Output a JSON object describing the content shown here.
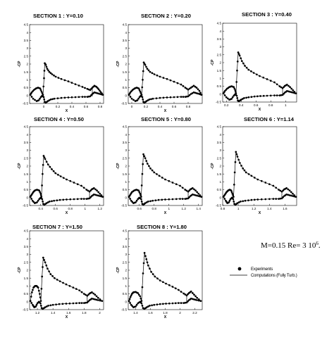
{
  "figure": {
    "conditions_main": "M=0.15 Re= 3 10",
    "conditions_sup": "6",
    "conditions_end": ".",
    "legend": {
      "experiments": "Experiments",
      "computations": "Computations (Fully Turb.)"
    }
  },
  "chart_data": [
    {
      "type": "line",
      "title": "SECTION 1 : Y=0.10",
      "xlabel": "X",
      "ylabel": "-CP",
      "xlim": [
        -0.2,
        0.85
      ],
      "ylim": [
        -0.5,
        4.5
      ],
      "xticks": [
        "0",
        "0.2",
        "0.4",
        "0.6",
        "0.8"
      ],
      "xtick_values": [
        0,
        0.2,
        0.4,
        0.6,
        0.8
      ],
      "yticks": [
        "-0.5",
        "0",
        "0.5",
        "1",
        "1.5",
        "2",
        "2.5",
        "3",
        "3.5",
        "4",
        "4.5"
      ],
      "upper_x": [
        -0.19,
        -0.17,
        -0.14,
        -0.11,
        -0.08,
        -0.05,
        -0.03,
        -0.01,
        0.005,
        0.015,
        0.03,
        0.05,
        0.08,
        0.12,
        0.17,
        0.25,
        0.35,
        0.45,
        0.55,
        0.62,
        0.66,
        0.69,
        0.72,
        0.75,
        0.78,
        0.81,
        0.84
      ],
      "upper_cp": [
        0.05,
        0.2,
        0.35,
        0.45,
        0.5,
        0.45,
        0.25,
        0.05,
        1.1,
        2.05,
        1.95,
        1.7,
        1.5,
        1.35,
        1.2,
        1.05,
        0.9,
        0.72,
        0.55,
        0.42,
        0.35,
        0.5,
        0.62,
        0.55,
        0.4,
        0.22,
        0.05
      ],
      "lower_x": [
        -0.19,
        -0.15,
        -0.1,
        -0.07,
        -0.04,
        -0.02,
        0.0,
        0.015,
        0.03,
        0.06,
        0.1,
        0.15,
        0.25,
        0.35,
        0.45,
        0.55,
        0.62,
        0.66,
        0.69,
        0.72,
        0.76,
        0.8,
        0.84
      ],
      "lower_cp": [
        0.05,
        -0.2,
        -0.35,
        -0.3,
        -0.1,
        0.0,
        -0.1,
        -0.4,
        -0.45,
        -0.35,
        -0.25,
        -0.2,
        -0.15,
        -0.12,
        -0.1,
        -0.08,
        -0.08,
        -0.05,
        0.1,
        0.2,
        0.15,
        0.1,
        0.05
      ],
      "drop_x": [
        0.69
      ],
      "drop_cp": [
        [
          0.5,
          -0.05
        ]
      ]
    },
    {
      "type": "line",
      "title": "SECTION 2 : Y=0.20",
      "xlabel": "X",
      "ylabel": "-CP",
      "xlim": [
        -0.05,
        1.0
      ],
      "ylim": [
        -0.5,
        4.5
      ],
      "xticks": [
        "0",
        "0.2",
        "0.4",
        "0.6",
        "0.8"
      ],
      "xtick_values": [
        0,
        0.2,
        0.4,
        0.6,
        0.8
      ],
      "yticks": [
        "-0.5",
        "0",
        "0.5",
        "1",
        "1.5",
        "2",
        "2.5",
        "3",
        "3.5",
        "4",
        "4.5"
      ],
      "upper_x": [
        -0.04,
        -0.02,
        0.01,
        0.04,
        0.07,
        0.1,
        0.12,
        0.14,
        0.155,
        0.17,
        0.19,
        0.22,
        0.26,
        0.32,
        0.4,
        0.5,
        0.6,
        0.7,
        0.76,
        0.8,
        0.84,
        0.88,
        0.92,
        0.96,
        0.99
      ],
      "upper_cp": [
        0.05,
        0.2,
        0.35,
        0.45,
        0.5,
        0.45,
        0.25,
        0.05,
        1.0,
        2.1,
        1.95,
        1.7,
        1.5,
        1.35,
        1.2,
        1.05,
        0.88,
        0.7,
        0.5,
        0.38,
        0.5,
        0.62,
        0.5,
        0.3,
        0.05
      ],
      "lower_x": [
        -0.04,
        0.0,
        0.05,
        0.08,
        0.11,
        0.13,
        0.15,
        0.165,
        0.18,
        0.21,
        0.25,
        0.3,
        0.4,
        0.5,
        0.6,
        0.7,
        0.76,
        0.8,
        0.84,
        0.88,
        0.92,
        0.96,
        0.99
      ],
      "lower_cp": [
        0.05,
        -0.2,
        -0.35,
        -0.3,
        -0.1,
        0.0,
        -0.1,
        -0.4,
        -0.45,
        -0.35,
        -0.25,
        -0.2,
        -0.15,
        -0.12,
        -0.1,
        -0.08,
        -0.08,
        -0.05,
        0.1,
        0.2,
        0.15,
        0.1,
        0.05
      ],
      "drop_x": [
        0.8
      ],
      "drop_cp": [
        [
          0.38,
          -0.05
        ]
      ]
    },
    {
      "type": "line",
      "title": "SECTION 3 : Y=0.40",
      "xlabel": "X",
      "ylabel": "-CP",
      "xlim": [
        0.15,
        1.15
      ],
      "ylim": [
        -0.5,
        4.5
      ],
      "xticks": [
        "0.2",
        "0.4",
        "0.6",
        "0.8",
        "1"
      ],
      "xtick_values": [
        0.2,
        0.4,
        0.6,
        0.8,
        1.0
      ],
      "yticks": [
        "-0.5",
        "0",
        "0.5",
        "1",
        "1.5",
        "2",
        "2.5",
        "3",
        "3.5",
        "4",
        "4.5"
      ],
      "upper_x": [
        0.16,
        0.18,
        0.21,
        0.24,
        0.27,
        0.3,
        0.32,
        0.33,
        0.345,
        0.36,
        0.38,
        0.41,
        0.45,
        0.5,
        0.57,
        0.65,
        0.75,
        0.85,
        0.92,
        0.96,
        0.99,
        1.02,
        1.06,
        1.1,
        1.14
      ],
      "upper_cp": [
        0.05,
        0.2,
        0.35,
        0.45,
        0.5,
        0.45,
        0.25,
        0.05,
        1.5,
        2.65,
        2.45,
        2.1,
        1.8,
        1.55,
        1.35,
        1.15,
        0.95,
        0.75,
        0.5,
        0.38,
        0.52,
        0.6,
        0.45,
        0.25,
        0.05
      ],
      "lower_x": [
        0.16,
        0.2,
        0.24,
        0.27,
        0.3,
        0.32,
        0.34,
        0.355,
        0.37,
        0.4,
        0.44,
        0.5,
        0.58,
        0.66,
        0.75,
        0.85,
        0.92,
        0.96,
        0.99,
        1.02,
        1.06,
        1.1,
        1.14
      ],
      "lower_cp": [
        0.05,
        -0.2,
        -0.35,
        -0.3,
        -0.1,
        0.0,
        -0.1,
        -0.4,
        -0.45,
        -0.35,
        -0.25,
        -0.2,
        -0.15,
        -0.12,
        -0.1,
        -0.08,
        -0.08,
        -0.05,
        0.1,
        0.2,
        0.15,
        0.1,
        0.05
      ],
      "drop_x": [
        0.96
      ],
      "drop_cp": [
        [
          0.38,
          -0.05
        ]
      ]
    },
    {
      "type": "line",
      "title": "SECTION 4 : Y=0.50",
      "xlabel": "X",
      "ylabel": "-CP",
      "xlim": [
        0.25,
        1.25
      ],
      "ylim": [
        -0.5,
        4.5
      ],
      "xticks": [
        "0.4",
        "0.6",
        "0.8",
        "1",
        "1.2"
      ],
      "xtick_values": [
        0.4,
        0.6,
        0.8,
        1.0,
        1.2
      ],
      "yticks": [
        "-0.5",
        "0",
        "0.5",
        "1",
        "1.5",
        "2",
        "2.5",
        "3",
        "3.5",
        "4",
        "4.5"
      ],
      "upper_x": [
        0.26,
        0.28,
        0.3,
        0.32,
        0.35,
        0.38,
        0.4,
        0.41,
        0.425,
        0.44,
        0.46,
        0.5,
        0.55,
        0.6,
        0.67,
        0.75,
        0.85,
        0.95,
        1.02,
        1.06,
        1.09,
        1.12,
        1.16,
        1.2,
        1.24
      ],
      "upper_cp": [
        0.05,
        0.2,
        0.35,
        0.45,
        0.5,
        0.45,
        0.25,
        0.05,
        1.5,
        2.65,
        2.45,
        2.1,
        1.8,
        1.55,
        1.35,
        1.15,
        0.95,
        0.75,
        0.5,
        0.38,
        0.52,
        0.6,
        0.45,
        0.25,
        0.05
      ],
      "lower_x": [
        0.26,
        0.29,
        0.32,
        0.35,
        0.38,
        0.4,
        0.42,
        0.435,
        0.45,
        0.48,
        0.52,
        0.58,
        0.66,
        0.75,
        0.85,
        0.95,
        1.02,
        1.06,
        1.09,
        1.12,
        1.16,
        1.2,
        1.24
      ],
      "lower_cp": [
        0.05,
        -0.2,
        -0.35,
        -0.3,
        -0.1,
        0.0,
        -0.1,
        -0.4,
        -0.45,
        -0.35,
        -0.25,
        -0.2,
        -0.15,
        -0.12,
        -0.1,
        -0.08,
        -0.08,
        -0.05,
        0.1,
        0.2,
        0.15,
        0.1,
        0.05
      ],
      "drop_x": [
        1.06
      ],
      "drop_cp": [
        [
          0.38,
          -0.05
        ]
      ]
    },
    {
      "type": "line",
      "title": "SECTION 5 : Y=0.80",
      "xlabel": "X",
      "ylabel": "-CP",
      "xlim": [
        0.45,
        1.45
      ],
      "ylim": [
        -0.5,
        4.5
      ],
      "xticks": [
        "0.6",
        "0.8",
        "1",
        "1.2",
        "1.4"
      ],
      "xtick_values": [
        0.6,
        0.8,
        1.0,
        1.2,
        1.4
      ],
      "yticks": [
        "-0.5",
        "0",
        "0.5",
        "1",
        "1.5",
        "2",
        "2.5",
        "3",
        "3.5",
        "4",
        "4.5"
      ],
      "upper_x": [
        0.46,
        0.48,
        0.5,
        0.53,
        0.56,
        0.59,
        0.61,
        0.625,
        0.64,
        0.655,
        0.68,
        0.71,
        0.75,
        0.8,
        0.87,
        0.95,
        1.05,
        1.15,
        1.22,
        1.26,
        1.29,
        1.32,
        1.36,
        1.4,
        1.44
      ],
      "upper_cp": [
        0.05,
        0.2,
        0.35,
        0.45,
        0.5,
        0.45,
        0.25,
        0.05,
        1.5,
        2.75,
        2.5,
        2.15,
        1.85,
        1.6,
        1.38,
        1.15,
        0.95,
        0.75,
        0.5,
        0.38,
        0.52,
        0.6,
        0.45,
        0.25,
        0.05
      ],
      "lower_x": [
        0.46,
        0.49,
        0.52,
        0.55,
        0.58,
        0.6,
        0.625,
        0.64,
        0.655,
        0.68,
        0.72,
        0.78,
        0.86,
        0.95,
        1.05,
        1.15,
        1.22,
        1.26,
        1.29,
        1.32,
        1.36,
        1.4,
        1.44
      ],
      "lower_cp": [
        0.05,
        -0.2,
        -0.35,
        -0.3,
        -0.1,
        0.0,
        -0.1,
        -0.4,
        -0.45,
        -0.35,
        -0.25,
        -0.2,
        -0.15,
        -0.12,
        -0.1,
        -0.08,
        -0.08,
        -0.05,
        0.1,
        0.2,
        0.15,
        0.1,
        0.05
      ],
      "drop_x": [
        1.26
      ],
      "drop_cp": [
        [
          0.38,
          -0.05
        ]
      ]
    },
    {
      "type": "line",
      "title": "SECTION 6 : Y=1.14",
      "xlabel": "X",
      "ylabel": "-CP",
      "xlim": [
        0.8,
        1.75
      ],
      "ylim": [
        -0.5,
        4.5
      ],
      "xticks": [
        "0.8",
        "1",
        "1.2",
        "1.4",
        "1.6"
      ],
      "xtick_values": [
        0.8,
        1.0,
        1.2,
        1.4,
        1.6
      ],
      "yticks": [
        "-0.5",
        "0",
        "0.5",
        "1",
        "1.5",
        "2",
        "2.5",
        "3",
        "3.5",
        "4",
        "4.5"
      ],
      "upper_x": [
        0.81,
        0.83,
        0.85,
        0.87,
        0.89,
        0.91,
        0.925,
        0.94,
        0.955,
        0.97,
        0.99,
        1.02,
        1.06,
        1.1,
        1.17,
        1.25,
        1.35,
        1.45,
        1.52,
        1.56,
        1.59,
        1.62,
        1.66,
        1.7,
        1.74
      ],
      "upper_cp": [
        0.05,
        0.2,
        0.35,
        0.45,
        0.5,
        0.45,
        0.25,
        0.05,
        1.6,
        2.9,
        2.6,
        2.2,
        1.85,
        1.6,
        1.38,
        1.15,
        0.95,
        0.75,
        0.5,
        0.38,
        0.52,
        0.6,
        0.45,
        0.25,
        0.05
      ],
      "lower_x": [
        0.81,
        0.84,
        0.86,
        0.88,
        0.9,
        0.92,
        0.935,
        0.95,
        0.965,
        0.99,
        1.03,
        1.09,
        1.17,
        1.25,
        1.35,
        1.45,
        1.52,
        1.56,
        1.59,
        1.62,
        1.66,
        1.7,
        1.74
      ],
      "lower_cp": [
        0.05,
        -0.2,
        -0.35,
        -0.3,
        -0.1,
        0.0,
        -0.1,
        -0.4,
        -0.45,
        -0.35,
        -0.25,
        -0.2,
        -0.15,
        -0.12,
        -0.1,
        -0.08,
        -0.08,
        -0.05,
        0.1,
        0.2,
        0.15,
        0.1,
        0.05
      ],
      "drop_x": [
        1.56
      ],
      "drop_cp": [
        [
          0.38,
          -0.05
        ]
      ]
    },
    {
      "type": "line",
      "title": "SECTION 7 : Y=1.50",
      "xlabel": "X",
      "ylabel": "-CP",
      "xlim": [
        1.1,
        2.05
      ],
      "ylim": [
        -0.5,
        4.5
      ],
      "xticks": [
        "1.2",
        "1.4",
        "1.6",
        "1.8",
        "2"
      ],
      "xtick_values": [
        1.2,
        1.4,
        1.6,
        1.8,
        2.0
      ],
      "yticks": [
        "-0.5",
        "0",
        "0.5",
        "1",
        "1.5",
        "2",
        "2.5",
        "3",
        "3.5",
        "4",
        "4.5"
      ],
      "upper_x": [
        1.11,
        1.13,
        1.15,
        1.17,
        1.19,
        1.21,
        1.23,
        1.245,
        1.26,
        1.275,
        1.3,
        1.33,
        1.37,
        1.42,
        1.49,
        1.57,
        1.66,
        1.74,
        1.8,
        1.84,
        1.87,
        1.9,
        1.94,
        1.98,
        2.03
      ],
      "upper_cp": [
        0.05,
        0.6,
        0.9,
        1.0,
        1.0,
        0.9,
        0.5,
        0.05,
        1.6,
        2.8,
        2.5,
        2.1,
        1.75,
        1.5,
        1.3,
        1.1,
        0.9,
        0.72,
        0.5,
        0.38,
        0.52,
        0.6,
        0.45,
        0.25,
        0.05
      ],
      "lower_x": [
        1.11,
        1.14,
        1.16,
        1.18,
        1.2,
        1.22,
        1.24,
        1.255,
        1.27,
        1.3,
        1.34,
        1.4,
        1.48,
        1.57,
        1.66,
        1.74,
        1.8,
        1.84,
        1.87,
        1.9,
        1.94,
        1.98,
        2.03
      ],
      "lower_cp": [
        0.05,
        -0.2,
        -0.35,
        -0.3,
        -0.1,
        0.0,
        -0.1,
        -0.4,
        -0.45,
        -0.35,
        -0.25,
        -0.2,
        -0.15,
        -0.12,
        -0.1,
        -0.08,
        -0.08,
        -0.05,
        0.1,
        0.2,
        0.15,
        0.1,
        0.05
      ],
      "drop_x": [
        1.84
      ],
      "drop_cp": [
        [
          0.38,
          -0.05
        ]
      ]
    },
    {
      "type": "line",
      "title": "SECTION 8 : Y=1.80",
      "xlabel": "X",
      "ylabel": "-CP",
      "xlim": [
        1.3,
        2.3
      ],
      "ylim": [
        -0.5,
        4.5
      ],
      "xticks": [
        "1.4",
        "1.6",
        "1.8",
        "2",
        "2.2"
      ],
      "xtick_values": [
        1.4,
        1.6,
        1.8,
        2.0,
        2.2
      ],
      "yticks": [
        "-0.5",
        "0",
        "0.5",
        "1",
        "1.5",
        "2",
        "2.5",
        "3",
        "3.5",
        "4",
        "4.5"
      ],
      "upper_x": [
        1.31,
        1.33,
        1.35,
        1.37,
        1.4,
        1.43,
        1.46,
        1.48,
        1.5,
        1.52,
        1.545,
        1.57,
        1.61,
        1.66,
        1.73,
        1.81,
        1.9,
        1.98,
        2.05,
        2.09,
        2.12,
        2.15,
        2.19,
        2.23,
        2.28
      ],
      "upper_cp": [
        0.05,
        0.3,
        0.5,
        0.6,
        0.62,
        0.55,
        0.35,
        0.05,
        1.8,
        3.1,
        2.7,
        2.3,
        1.9,
        1.6,
        1.35,
        1.15,
        0.95,
        0.75,
        0.52,
        0.4,
        0.55,
        0.65,
        0.45,
        0.25,
        0.05
      ],
      "lower_x": [
        1.31,
        1.34,
        1.37,
        1.4,
        1.43,
        1.46,
        1.48,
        1.5,
        1.52,
        1.55,
        1.59,
        1.65,
        1.73,
        1.81,
        1.9,
        1.98,
        2.05,
        2.09,
        2.12,
        2.15,
        2.19,
        2.23,
        2.28
      ],
      "lower_cp": [
        0.05,
        -0.2,
        -0.35,
        -0.3,
        -0.1,
        0.0,
        -0.1,
        -0.4,
        -0.45,
        -0.35,
        -0.25,
        -0.2,
        -0.15,
        -0.12,
        -0.1,
        -0.08,
        -0.08,
        -0.05,
        0.1,
        0.2,
        0.15,
        0.1,
        0.05
      ],
      "drop_x": [
        2.09
      ],
      "drop_cp": [
        [
          0.4,
          -0.05
        ]
      ]
    }
  ]
}
